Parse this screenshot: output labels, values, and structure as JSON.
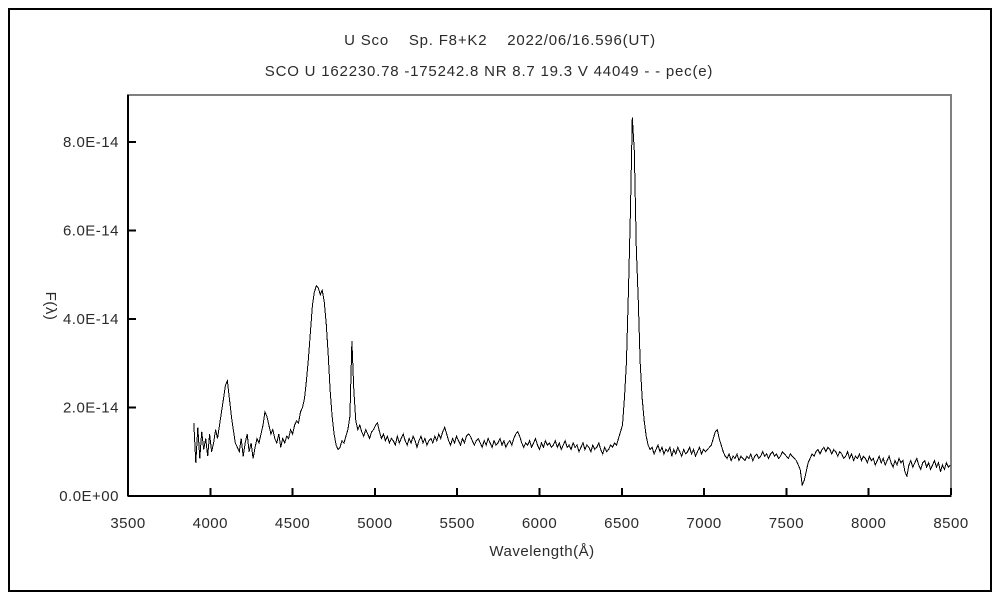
{
  "window": {
    "background": "#ffffff",
    "outer_border_color": "#000000",
    "plot_frame_color": "#808080",
    "axis_color": "#000000"
  },
  "chart_data": {
    "type": "line",
    "title": "U Sco    Sp. F8+K2    2022/06/16.596(UT)",
    "subtitle": "SCO U 162230.78 -175242.8 NR 8.7 19.3 V 44049 - - pec(e)",
    "xlabel": "Wavelength(Å)",
    "ylabel": "F(λ)",
    "xlim": [
      3500,
      8500
    ],
    "ylim": [
      0,
      9.06e-14
    ],
    "grid": false,
    "legend": null,
    "line_color": "#000000",
    "x_tick_values": [
      3500,
      4000,
      4500,
      5000,
      5500,
      6000,
      6500,
      7000,
      7500,
      8000,
      8500
    ],
    "y_ticks": [
      {
        "value": 0.0,
        "label": "0.0E+00"
      },
      {
        "value": 2e-14,
        "label": "2.0E-14"
      },
      {
        "value": 4e-14,
        "label": "4.0E-14"
      },
      {
        "value": 6e-14,
        "label": "6.0E-14"
      },
      {
        "value": 8e-14,
        "label": "8.0E-14"
      }
    ],
    "series": [
      {
        "name": "spectrum",
        "x_start_angstrom": 3900,
        "x_step_angstrom": 12,
        "flux_1e14": [
          1.65,
          0.75,
          1.55,
          0.85,
          1.45,
          1.05,
          1.3,
          0.9,
          1.4,
          1.0,
          1.2,
          1.5,
          1.3,
          1.6,
          1.9,
          2.2,
          2.5,
          2.6,
          2.2,
          1.8,
          1.5,
          1.2,
          1.1,
          1.0,
          1.3,
          0.9,
          1.2,
          1.4,
          1.0,
          1.2,
          0.85,
          1.1,
          1.3,
          1.2,
          1.4,
          1.6,
          1.9,
          1.8,
          1.6,
          1.4,
          1.5,
          1.3,
          1.2,
          1.4,
          1.1,
          1.3,
          1.2,
          1.35,
          1.3,
          1.5,
          1.4,
          1.6,
          1.7,
          1.65,
          1.9,
          2.0,
          2.2,
          2.6,
          3.1,
          3.7,
          4.3,
          4.6,
          4.75,
          4.7,
          4.55,
          4.65,
          4.4,
          3.9,
          3.2,
          2.4,
          1.8,
          1.4,
          1.15,
          1.05,
          1.1,
          1.25,
          1.2,
          1.35,
          1.5,
          1.8,
          3.5,
          2.4,
          1.7,
          1.5,
          1.6,
          1.45,
          1.35,
          1.5,
          1.4,
          1.3,
          1.45,
          1.5,
          1.6,
          1.65,
          1.45,
          1.3,
          1.4,
          1.25,
          1.35,
          1.2,
          1.3,
          1.25,
          1.15,
          1.35,
          1.2,
          1.3,
          1.4,
          1.25,
          1.15,
          1.3,
          1.2,
          1.35,
          1.25,
          1.1,
          1.25,
          1.35,
          1.2,
          1.3,
          1.15,
          1.25,
          1.3,
          1.2,
          1.35,
          1.25,
          1.4,
          1.3,
          1.45,
          1.55,
          1.4,
          1.25,
          1.15,
          1.3,
          1.2,
          1.35,
          1.25,
          1.15,
          1.3,
          1.2,
          1.35,
          1.4,
          1.35,
          1.25,
          1.15,
          1.25,
          1.3,
          1.2,
          1.1,
          1.25,
          1.15,
          1.3,
          1.2,
          1.1,
          1.25,
          1.15,
          1.2,
          1.3,
          1.15,
          1.25,
          1.1,
          1.2,
          1.25,
          1.15,
          1.3,
          1.4,
          1.45,
          1.35,
          1.2,
          1.1,
          1.2,
          1.15,
          1.25,
          1.1,
          1.2,
          1.3,
          1.15,
          1.05,
          1.2,
          1.1,
          1.25,
          1.15,
          1.2,
          1.1,
          1.15,
          1.25,
          1.1,
          1.2,
          1.05,
          1.15,
          1.25,
          1.1,
          1.15,
          1.05,
          1.2,
          1.1,
          1.15,
          1.0,
          1.1,
          1.2,
          1.05,
          1.15,
          1.1,
          1.0,
          1.15,
          1.05,
          1.1,
          1.2,
          1.05,
          0.95,
          1.1,
          1.0,
          1.05,
          1.15,
          1.1,
          1.2,
          1.15,
          1.3,
          1.45,
          1.6,
          2.2,
          3.0,
          4.6,
          6.4,
          8.55,
          7.8,
          5.6,
          4.4,
          3.0,
          2.2,
          1.7,
          1.35,
          1.15,
          1.05,
          1.1,
          0.95,
          1.05,
          1.15,
          1.0,
          1.1,
          0.95,
          1.05,
          1.0,
          1.1,
          0.9,
          1.05,
          0.95,
          1.1,
          1.0,
          0.9,
          1.05,
          0.95,
          1.0,
          1.1,
          0.95,
          1.05,
          0.9,
          1.0,
          1.1,
          0.95,
          1.05,
          1.0,
          1.05,
          1.1,
          1.15,
          1.3,
          1.45,
          1.5,
          1.3,
          1.15,
          1.0,
          0.9,
          0.85,
          0.95,
          0.8,
          0.9,
          0.85,
          0.95,
          0.8,
          0.9,
          0.85,
          0.8,
          0.9,
          0.85,
          0.95,
          0.8,
          0.9,
          0.95,
          0.85,
          0.9,
          1.0,
          0.9,
          0.95,
          0.85,
          0.95,
          1.0,
          0.9,
          0.95,
          0.85,
          0.9,
          1.0,
          0.95,
          0.9,
          0.85,
          0.95,
          0.9,
          0.85,
          0.8,
          0.7,
          0.6,
          0.25,
          0.35,
          0.55,
          0.75,
          0.85,
          0.95,
          0.9,
          1.0,
          1.05,
          0.95,
          1.05,
          1.1,
          1.0,
          1.1,
          1.05,
          0.95,
          1.05,
          1.0,
          0.9,
          1.0,
          0.95,
          0.85,
          0.9,
          1.0,
          0.85,
          0.95,
          0.8,
          0.9,
          0.85,
          0.95,
          0.8,
          0.9,
          0.85,
          0.75,
          0.9,
          0.8,
          0.85,
          0.7,
          0.8,
          0.9,
          0.75,
          0.85,
          0.7,
          0.8,
          0.9,
          0.75,
          0.65,
          0.8,
          0.7,
          0.85,
          0.75,
          0.8,
          0.55,
          0.45,
          0.7,
          0.8,
          0.65,
          0.75,
          0.85,
          0.7,
          0.6,
          0.75,
          0.8,
          0.65,
          0.75,
          0.6,
          0.7,
          0.8,
          0.65,
          0.75,
          0.55,
          0.7,
          0.6,
          0.75,
          0.65,
          0.7
        ]
      }
    ]
  }
}
